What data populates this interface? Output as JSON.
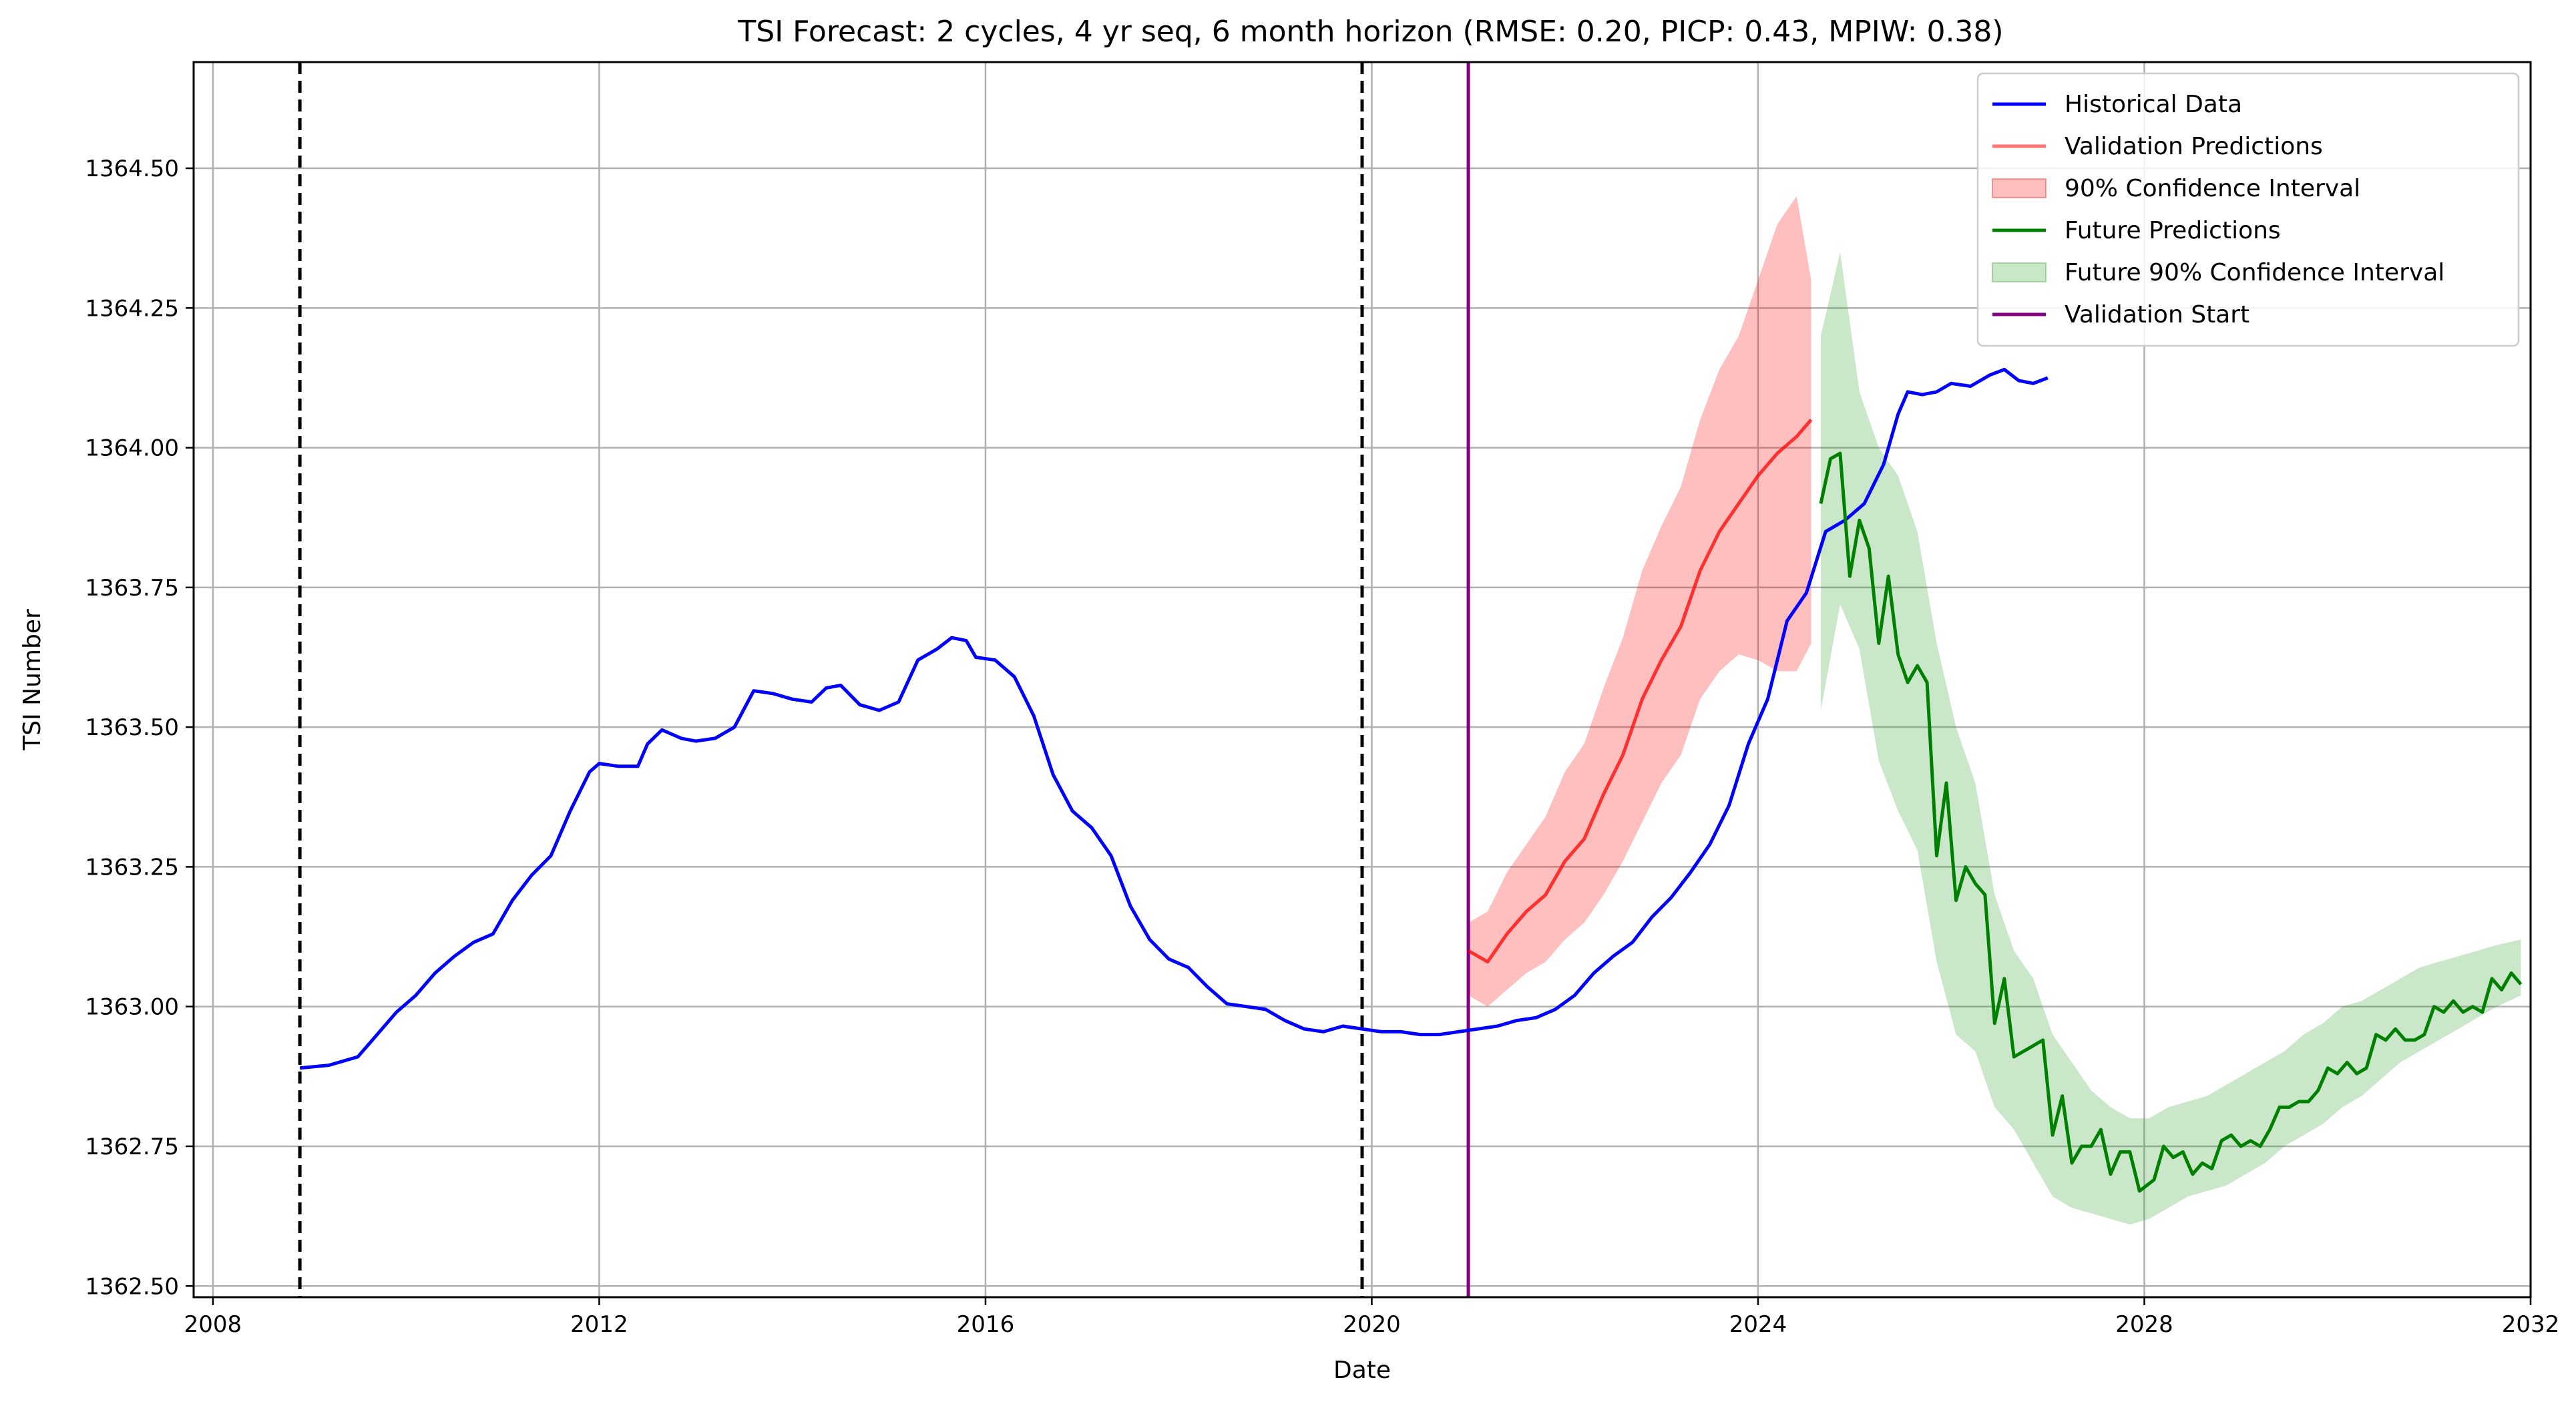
{
  "chart_data": {
    "type": "line",
    "title": "TSI Forecast: 2 cycles, 4 yr seq, 6 month horizon (RMSE: 0.20, PICP: 0.43, MPIW: 0.38)",
    "xlabel": "Date",
    "ylabel": "TSI Number",
    "xlim": [
      2007.8,
      2032.0
    ],
    "ylim": [
      1362.48,
      1364.69
    ],
    "x_ticks": [
      2008,
      2012,
      2016,
      2020,
      2024,
      2028,
      2032
    ],
    "x_tick_labels": [
      "2008",
      "2012",
      "2016",
      "2020",
      "2024",
      "2028",
      "2032"
    ],
    "y_ticks": [
      1362.5,
      1362.75,
      1363.0,
      1363.25,
      1363.5,
      1363.75,
      1364.0,
      1364.25,
      1364.5
    ],
    "y_tick_labels": [
      "1362.50",
      "1362.75",
      "1363.00",
      "1363.25",
      "1363.50",
      "1363.75",
      "1364.00",
      "1364.25",
      "1364.50"
    ],
    "grid": true,
    "legend_position": "top-right",
    "colors": {
      "historical": "#0000ff",
      "validation": "#ff0000",
      "future": "#008000",
      "future_band": "#2ca02c",
      "validation_start": "#800080",
      "cycle_line": "#000000",
      "grid": "#b0b0b0"
    },
    "cycle_boundaries": [
      2008.9,
      2019.9
    ],
    "validation_start": 2021.0,
    "series": [
      {
        "name": "Historical Data",
        "kind": "line",
        "color": "#0000ff",
        "points": [
          [
            2008.9,
            1362.89
          ],
          [
            2009.2,
            1362.895
          ],
          [
            2009.5,
            1362.91
          ],
          [
            2009.7,
            1362.95
          ],
          [
            2009.9,
            1362.99
          ],
          [
            2010.1,
            1363.02
          ],
          [
            2010.3,
            1363.06
          ],
          [
            2010.5,
            1363.09
          ],
          [
            2010.7,
            1363.115
          ],
          [
            2010.9,
            1363.13
          ],
          [
            2011.1,
            1363.19
          ],
          [
            2011.3,
            1363.235
          ],
          [
            2011.5,
            1363.27
          ],
          [
            2011.7,
            1363.35
          ],
          [
            2011.9,
            1363.42
          ],
          [
            2012.0,
            1363.435
          ],
          [
            2012.2,
            1363.43
          ],
          [
            2012.4,
            1363.43
          ],
          [
            2012.5,
            1363.47
          ],
          [
            2012.65,
            1363.495
          ],
          [
            2012.85,
            1363.48
          ],
          [
            2013.0,
            1363.475
          ],
          [
            2013.2,
            1363.48
          ],
          [
            2013.4,
            1363.5
          ],
          [
            2013.6,
            1363.565
          ],
          [
            2013.8,
            1363.56
          ],
          [
            2014.0,
            1363.55
          ],
          [
            2014.2,
            1363.545
          ],
          [
            2014.35,
            1363.57
          ],
          [
            2014.5,
            1363.575
          ],
          [
            2014.7,
            1363.54
          ],
          [
            2014.9,
            1363.53
          ],
          [
            2015.1,
            1363.545
          ],
          [
            2015.3,
            1363.62
          ],
          [
            2015.5,
            1363.64
          ],
          [
            2015.65,
            1363.66
          ],
          [
            2015.8,
            1363.655
          ],
          [
            2015.9,
            1363.625
          ],
          [
            2016.1,
            1363.62
          ],
          [
            2016.3,
            1363.59
          ],
          [
            2016.5,
            1363.52
          ],
          [
            2016.7,
            1363.415
          ],
          [
            2016.9,
            1363.35
          ],
          [
            2017.1,
            1363.32
          ],
          [
            2017.3,
            1363.27
          ],
          [
            2017.5,
            1363.18
          ],
          [
            2017.7,
            1363.12
          ],
          [
            2017.9,
            1363.085
          ],
          [
            2018.1,
            1363.07
          ],
          [
            2018.3,
            1363.035
          ],
          [
            2018.5,
            1363.005
          ],
          [
            2018.7,
            1363.0
          ],
          [
            2018.9,
            1362.995
          ],
          [
            2019.1,
            1362.975
          ],
          [
            2019.3,
            1362.96
          ],
          [
            2019.5,
            1362.955
          ],
          [
            2019.7,
            1362.965
          ],
          [
            2019.9,
            1362.96
          ],
          [
            2020.1,
            1362.955
          ],
          [
            2020.3,
            1362.955
          ],
          [
            2020.5,
            1362.95
          ],
          [
            2020.7,
            1362.95
          ],
          [
            2020.9,
            1362.955
          ],
          [
            2021.1,
            1362.96
          ],
          [
            2021.3,
            1362.965
          ],
          [
            2021.5,
            1362.975
          ],
          [
            2021.7,
            1362.98
          ],
          [
            2021.9,
            1362.995
          ],
          [
            2022.1,
            1363.02
          ],
          [
            2022.3,
            1363.06
          ],
          [
            2022.5,
            1363.09
          ],
          [
            2022.7,
            1363.115
          ],
          [
            2022.9,
            1363.16
          ],
          [
            2023.1,
            1363.195
          ],
          [
            2023.3,
            1363.24
          ],
          [
            2023.5,
            1363.29
          ],
          [
            2023.7,
            1363.36
          ],
          [
            2023.9,
            1363.47
          ],
          [
            2024.1,
            1363.55
          ],
          [
            2024.3,
            1363.69
          ],
          [
            2024.5,
            1363.74
          ],
          [
            2024.7,
            1363.85
          ],
          [
            2024.9,
            1363.87
          ],
          [
            2025.1,
            1363.9
          ],
          [
            2025.3,
            1363.97
          ],
          [
            2025.45,
            1364.06
          ],
          [
            2025.55,
            1364.1
          ],
          [
            2025.7,
            1364.095
          ],
          [
            2025.85,
            1364.1
          ],
          [
            2026.0,
            1364.115
          ],
          [
            2026.2,
            1364.11
          ],
          [
            2026.4,
            1364.13
          ],
          [
            2026.55,
            1364.14
          ],
          [
            2026.7,
            1364.12
          ],
          [
            2026.85,
            1364.115
          ],
          [
            2027.0,
            1364.125
          ]
        ]
      },
      {
        "name": "Validation Predictions",
        "kind": "line",
        "color": "#ff0000",
        "points": [
          [
            2021.0,
            1363.1
          ],
          [
            2021.2,
            1363.08
          ],
          [
            2021.4,
            1363.13
          ],
          [
            2021.6,
            1363.17
          ],
          [
            2021.8,
            1363.2
          ],
          [
            2022.0,
            1363.26
          ],
          [
            2022.2,
            1363.3
          ],
          [
            2022.4,
            1363.38
          ],
          [
            2022.6,
            1363.45
          ],
          [
            2022.8,
            1363.55
          ],
          [
            2023.0,
            1363.62
          ],
          [
            2023.2,
            1363.68
          ],
          [
            2023.4,
            1363.78
          ],
          [
            2023.6,
            1363.85
          ],
          [
            2023.8,
            1363.9
          ],
          [
            2024.0,
            1363.95
          ],
          [
            2024.2,
            1363.99
          ],
          [
            2024.4,
            1364.02
          ],
          [
            2024.55,
            1364.05
          ]
        ]
      },
      {
        "name": "90% Confidence Interval",
        "kind": "band",
        "color": "#ff0000",
        "x": [
          2021.0,
          2021.2,
          2021.4,
          2021.6,
          2021.8,
          2022.0,
          2022.2,
          2022.4,
          2022.6,
          2022.8,
          2023.0,
          2023.2,
          2023.4,
          2023.6,
          2023.8,
          2024.0,
          2024.2,
          2024.4,
          2024.55
        ],
        "lower": [
          1363.02,
          1363.0,
          1363.03,
          1363.06,
          1363.08,
          1363.12,
          1363.15,
          1363.2,
          1363.26,
          1363.33,
          1363.4,
          1363.45,
          1363.55,
          1363.6,
          1363.63,
          1363.62,
          1363.6,
          1363.6,
          1363.65
        ],
        "upper": [
          1363.15,
          1363.17,
          1363.24,
          1363.29,
          1363.34,
          1363.42,
          1363.47,
          1363.57,
          1363.66,
          1363.78,
          1363.86,
          1363.93,
          1364.05,
          1364.14,
          1364.2,
          1364.3,
          1364.4,
          1364.45,
          1364.3
        ]
      },
      {
        "name": "Future Predictions",
        "kind": "line",
        "color": "#008000",
        "points": [
          [
            2024.65,
            1363.9
          ],
          [
            2024.75,
            1363.98
          ],
          [
            2024.85,
            1363.99
          ],
          [
            2024.95,
            1363.77
          ],
          [
            2025.05,
            1363.87
          ],
          [
            2025.15,
            1363.82
          ],
          [
            2025.25,
            1363.65
          ],
          [
            2025.35,
            1363.77
          ],
          [
            2025.45,
            1363.63
          ],
          [
            2025.55,
            1363.58
          ],
          [
            2025.65,
            1363.61
          ],
          [
            2025.75,
            1363.58
          ],
          [
            2025.85,
            1363.27
          ],
          [
            2025.95,
            1363.4
          ],
          [
            2026.05,
            1363.19
          ],
          [
            2026.15,
            1363.25
          ],
          [
            2026.25,
            1363.22
          ],
          [
            2026.35,
            1363.2
          ],
          [
            2026.45,
            1362.97
          ],
          [
            2026.55,
            1363.05
          ],
          [
            2026.65,
            1362.91
          ],
          [
            2026.75,
            1362.92
          ],
          [
            2026.85,
            1362.93
          ],
          [
            2026.95,
            1362.94
          ],
          [
            2027.05,
            1362.77
          ],
          [
            2027.15,
            1362.84
          ],
          [
            2027.25,
            1362.72
          ],
          [
            2027.35,
            1362.75
          ],
          [
            2027.45,
            1362.75
          ],
          [
            2027.55,
            1362.78
          ],
          [
            2027.65,
            1362.7
          ],
          [
            2027.75,
            1362.74
          ],
          [
            2027.85,
            1362.74
          ],
          [
            2027.95,
            1362.67
          ],
          [
            2028.1,
            1362.69
          ],
          [
            2028.2,
            1362.75
          ],
          [
            2028.3,
            1362.73
          ],
          [
            2028.4,
            1362.74
          ],
          [
            2028.5,
            1362.7
          ],
          [
            2028.6,
            1362.72
          ],
          [
            2028.7,
            1362.71
          ],
          [
            2028.8,
            1362.76
          ],
          [
            2028.9,
            1362.77
          ],
          [
            2029.0,
            1362.75
          ],
          [
            2029.1,
            1362.76
          ],
          [
            2029.2,
            1362.75
          ],
          [
            2029.3,
            1362.78
          ],
          [
            2029.4,
            1362.82
          ],
          [
            2029.5,
            1362.82
          ],
          [
            2029.6,
            1362.83
          ],
          [
            2029.7,
            1362.83
          ],
          [
            2029.8,
            1362.85
          ],
          [
            2029.9,
            1362.89
          ],
          [
            2030.0,
            1362.88
          ],
          [
            2030.1,
            1362.9
          ],
          [
            2030.2,
            1362.88
          ],
          [
            2030.3,
            1362.89
          ],
          [
            2030.4,
            1362.95
          ],
          [
            2030.5,
            1362.94
          ],
          [
            2030.6,
            1362.96
          ],
          [
            2030.7,
            1362.94
          ],
          [
            2030.8,
            1362.94
          ],
          [
            2030.9,
            1362.95
          ],
          [
            2031.0,
            1363.0
          ],
          [
            2031.1,
            1362.99
          ],
          [
            2031.2,
            1363.01
          ],
          [
            2031.3,
            1362.99
          ],
          [
            2031.4,
            1363.0
          ],
          [
            2031.5,
            1362.99
          ],
          [
            2031.6,
            1363.05
          ],
          [
            2031.7,
            1363.03
          ],
          [
            2031.8,
            1363.06
          ],
          [
            2031.9,
            1363.04
          ]
        ]
      },
      {
        "name": "Future 90% Confidence Interval",
        "kind": "band",
        "color": "#2ca02c",
        "x": [
          2024.65,
          2024.85,
          2025.05,
          2025.25,
          2025.45,
          2025.65,
          2025.85,
          2026.05,
          2026.25,
          2026.45,
          2026.65,
          2026.85,
          2027.05,
          2027.25,
          2027.45,
          2027.65,
          2027.85,
          2028.05,
          2028.25,
          2028.45,
          2028.65,
          2028.85,
          2029.05,
          2029.25,
          2029.45,
          2029.65,
          2029.85,
          2030.05,
          2030.25,
          2030.45,
          2030.65,
          2030.85,
          2031.05,
          2031.25,
          2031.45,
          2031.65,
          2031.9
        ],
        "lower": [
          1363.53,
          1363.72,
          1363.64,
          1363.44,
          1363.35,
          1363.28,
          1363.08,
          1362.95,
          1362.92,
          1362.82,
          1362.78,
          1362.72,
          1362.66,
          1362.64,
          1362.63,
          1362.62,
          1362.61,
          1362.62,
          1362.64,
          1362.66,
          1362.67,
          1362.68,
          1362.7,
          1362.72,
          1362.75,
          1362.77,
          1362.79,
          1362.82,
          1362.84,
          1362.87,
          1362.9,
          1362.92,
          1362.94,
          1362.96,
          1362.98,
          1363.0,
          1363.02
        ],
        "upper": [
          1364.2,
          1364.35,
          1364.1,
          1364.0,
          1363.95,
          1363.85,
          1363.65,
          1363.5,
          1363.4,
          1363.2,
          1363.1,
          1363.05,
          1362.95,
          1362.9,
          1362.85,
          1362.82,
          1362.8,
          1362.8,
          1362.82,
          1362.83,
          1362.84,
          1362.86,
          1362.88,
          1362.9,
          1362.92,
          1362.95,
          1362.97,
          1363.0,
          1363.01,
          1363.03,
          1363.05,
          1363.07,
          1363.08,
          1363.09,
          1363.1,
          1363.11,
          1363.12
        ]
      },
      {
        "name": "Validation Start",
        "kind": "vline",
        "color": "#800080",
        "x": 2021.0
      }
    ]
  }
}
